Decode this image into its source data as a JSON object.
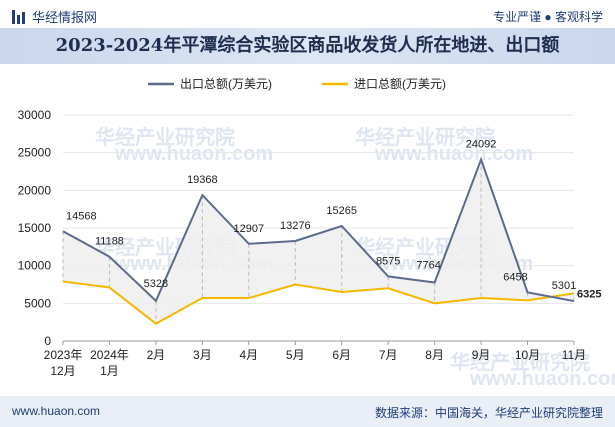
{
  "header": {
    "logo_text": "华经情报网",
    "slogan": "专业严谨 ● 客观科学"
  },
  "footer": {
    "site": "www.huaon.com",
    "source": "数据来源：中国海关，华经产业研究院整理"
  },
  "watermark": {
    "text": "华经产业研究院",
    "url": "www.huaon.com"
  },
  "colors": {
    "export": "#5b6b8c",
    "import": "#f5b800"
  },
  "chart_data": {
    "type": "line",
    "title": "2023-2024年平潭综合实验区商品收发货人所在地进、出口额",
    "categories": [
      "2023年\n12月",
      "2024年\n1月",
      "2月",
      "3月",
      "4月",
      "5月",
      "6月",
      "7月",
      "8月",
      "9月",
      "10月",
      "11月"
    ],
    "series": [
      {
        "name": "出口总额(万美元)",
        "values": [
          14568,
          11188,
          5328,
          19368,
          12907,
          13276,
          15265,
          8575,
          7764,
          24092,
          6458,
          5301
        ]
      },
      {
        "name": "进口总额(万美元)",
        "values": [
          7900,
          7100,
          2300,
          5700,
          5700,
          7500,
          6500,
          7000,
          5000,
          5700,
          5400,
          6325
        ]
      }
    ],
    "labeled": {
      "export_indices": [
        0,
        1,
        2,
        3,
        4,
        5,
        6,
        7,
        8,
        9,
        10,
        11
      ],
      "import_indices": [
        11
      ]
    },
    "ylim": [
      0,
      30000
    ],
    "yticks": [
      0,
      5000,
      10000,
      15000,
      20000,
      25000,
      30000
    ],
    "legend_position": "top-center"
  }
}
